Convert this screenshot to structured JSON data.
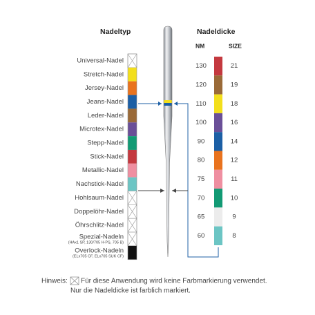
{
  "left": {
    "title": "Nadeltyp",
    "items": [
      {
        "label": "Universal-Nadel",
        "color": null
      },
      {
        "label": "Stretch-Nadel",
        "color": "#f3df1c"
      },
      {
        "label": "Jersey-Nadel",
        "color": "#e9731e"
      },
      {
        "label": "Jeans-Nadel",
        "color": "#1c5fa5"
      },
      {
        "label": "Leder-Nadel",
        "color": "#9a6a38"
      },
      {
        "label": "Microtex-Nadel",
        "color": "#6a4f98"
      },
      {
        "label": "Stepp-Nadel",
        "color": "#129a74"
      },
      {
        "label": "Stick-Nadel",
        "color": "#c4393f"
      },
      {
        "label": "Metallic-Nadel",
        "color": "#ef8fa1"
      },
      {
        "label": "Nachstick-Nadel",
        "color": "#6cc5c4"
      },
      {
        "label": "Hohlsaum-Nadel",
        "color": null
      },
      {
        "label": "Doppelöhr-Nadel",
        "color": null
      },
      {
        "label": "Öhrschlitz-Nadel",
        "color": null
      },
      {
        "label": "Spezial-Nadeln",
        "sub": "(HAx1 SP, 130/705 H-PS, 705 B)",
        "color": null
      },
      {
        "label": "Overlock-Nadeln",
        "sub": "(ELx705 CF, ELx705 SUK CF)",
        "color": "#111111"
      }
    ]
  },
  "right": {
    "title": "Nadeldicke",
    "nm_header": "NM",
    "size_header": "SIZE",
    "rows": [
      {
        "nm": "130",
        "size": "21",
        "color": "#c4393f"
      },
      {
        "nm": "120",
        "size": "19",
        "color": "#9a6a38"
      },
      {
        "nm": "110",
        "size": "18",
        "color": "#f3df1c"
      },
      {
        "nm": "100",
        "size": "16",
        "color": "#6a4f98"
      },
      {
        "nm": "90",
        "size": "14",
        "color": "#1c5fa5"
      },
      {
        "nm": "80",
        "size": "12",
        "color": "#e9731e"
      },
      {
        "nm": "75",
        "size": "11",
        "color": "#ef8fa1"
      },
      {
        "nm": "70",
        "size": "10",
        "color": "#129a74"
      },
      {
        "nm": "65",
        "size": "9",
        "color": "#ececec"
      },
      {
        "nm": "60",
        "size": "8",
        "color": "#6cc5c4"
      }
    ]
  },
  "footer": {
    "label": "Hinweis:",
    "lines": [
      "Für diese Anwendung wird keine Farbmarkierung verwendet.",
      "Nur die Nadeldicke ist farblich markiert."
    ]
  }
}
